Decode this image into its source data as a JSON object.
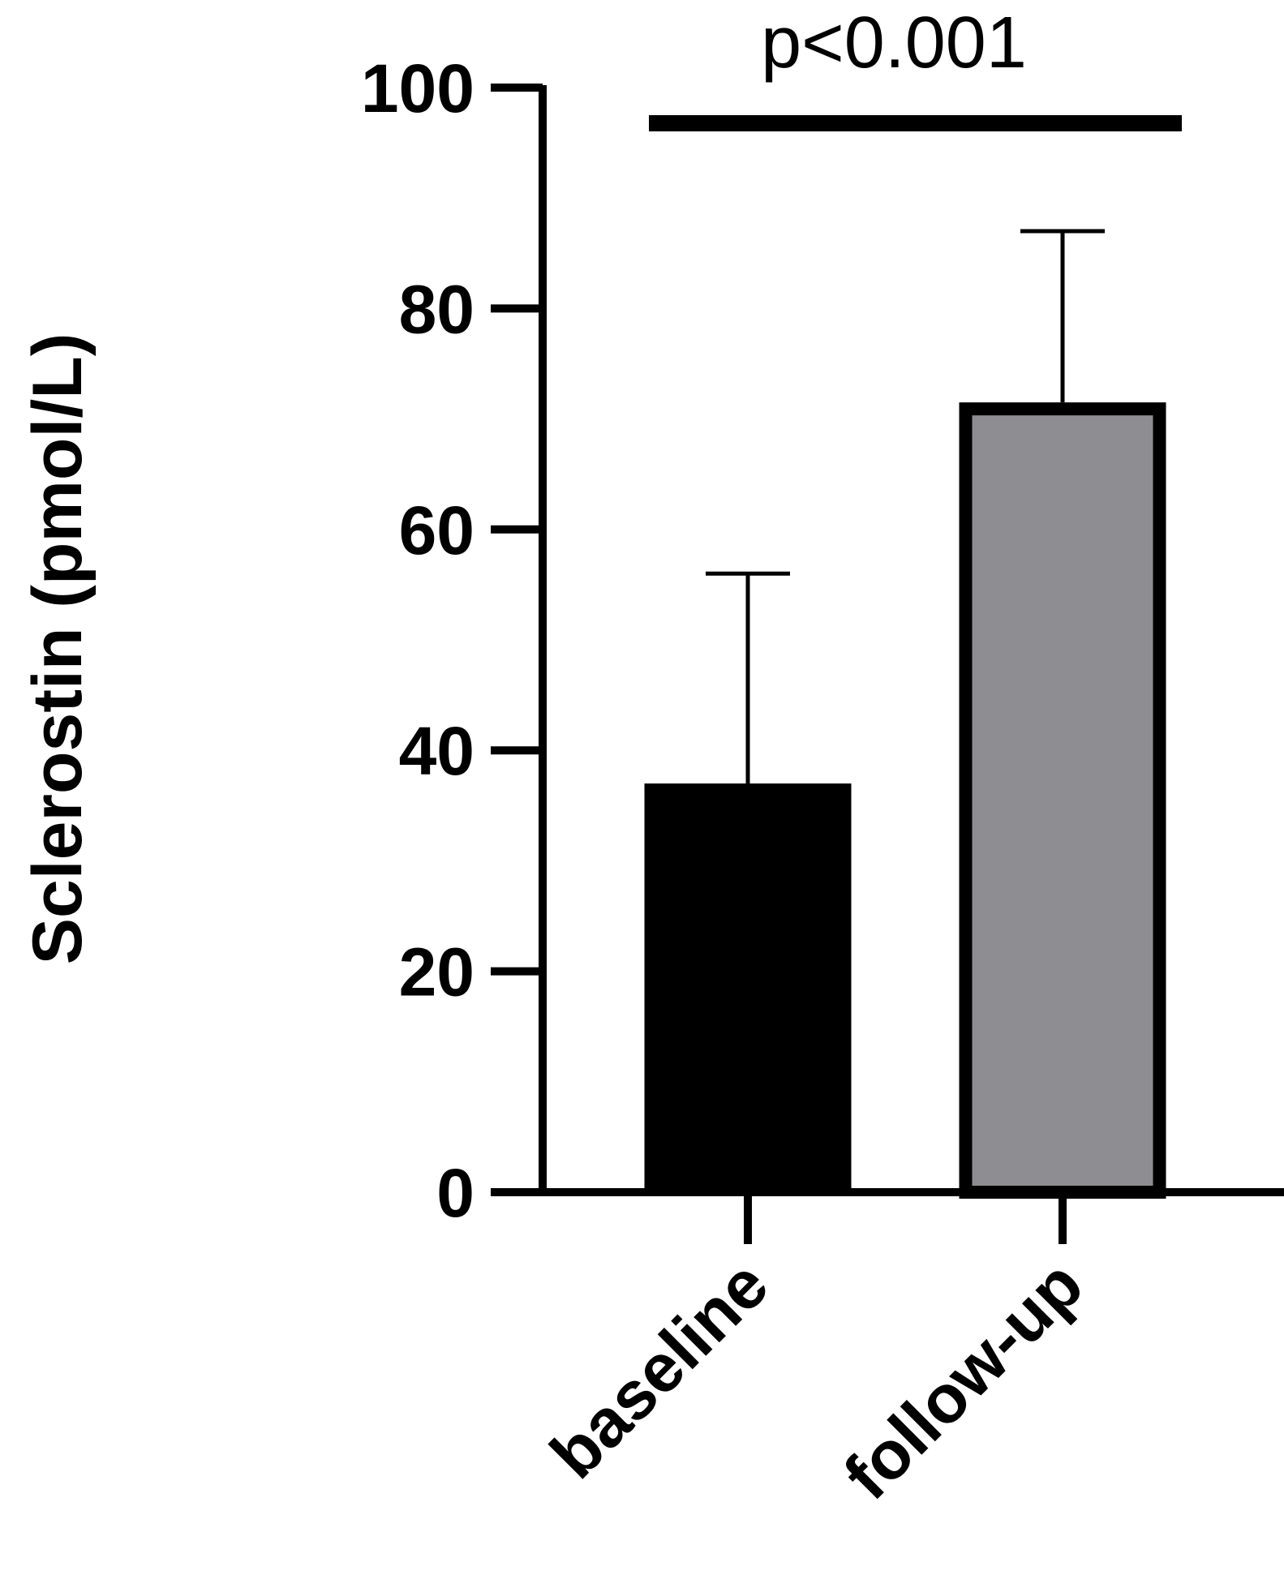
{
  "chart_data": {
    "type": "bar",
    "categories": [
      "baseline",
      "follow-up"
    ],
    "values": [
      37,
      71.5
    ],
    "error_upper": [
      56,
      87
    ],
    "colors": [
      "#000000",
      "#8e8d91"
    ],
    "ylabel": "Sclerostin (pmol/L)",
    "ylim": [
      0,
      100
    ],
    "yticks": [
      0,
      20,
      40,
      60,
      80,
      100
    ],
    "significance": {
      "label": "p<0.001",
      "between": [
        "baseline",
        "follow-up"
      ]
    }
  }
}
